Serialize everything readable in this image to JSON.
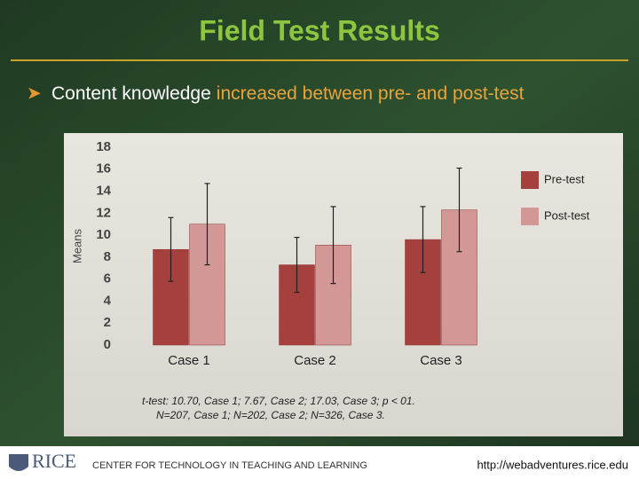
{
  "slide_title": "Field Test Results",
  "bullet": {
    "parts": [
      "Content knowledge",
      "increased between pre- and post-test"
    ]
  },
  "chart_data": {
    "type": "bar",
    "y_label": "Means",
    "categories": [
      "Case 1",
      "Case 2",
      "Case 3"
    ],
    "series": [
      {
        "name": "Pre-test",
        "color": "#a5403e",
        "values": [
          8.7,
          7.3,
          9.6
        ],
        "errors": [
          2.9,
          2.5,
          3.0
        ]
      },
      {
        "name": "Post-test",
        "color": "#d39896",
        "values": [
          11.0,
          9.1,
          12.3
        ],
        "errors": [
          3.7,
          3.5,
          3.8
        ]
      }
    ],
    "ylim": [
      0,
      18
    ],
    "yticks": [
      0,
      2,
      4,
      6,
      8,
      10,
      12,
      14,
      16,
      18
    ],
    "grid": false,
    "legend": "right"
  },
  "footnote": [
    "t-test: 10.70, Case 1; 7.67, Case 2; 17.03, Case 3; p < 01.",
    "N=207, Case 1; N=202, Case 2; N=326, Case 3."
  ],
  "footer": {
    "logo": "RICE",
    "center": "CENTER FOR TECHNOLOGY IN TEACHING AND LEARNING",
    "url": "http://webadventures.rice.edu"
  }
}
